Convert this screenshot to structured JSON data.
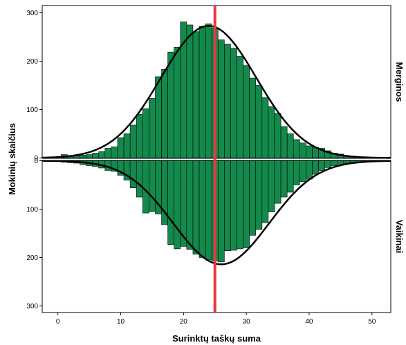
{
  "chart_data": {
    "type": "bar",
    "subtype": "back-to-back histogram with normal curves",
    "xlabel": "Surinktų taškų suma",
    "ylabel": "Mokinių skaičius",
    "xlim": [
      -2.5,
      53
    ],
    "xticks": [
      0,
      10,
      20,
      30,
      40,
      50
    ],
    "ylim": [
      0,
      300
    ],
    "yticks": [
      0,
      100,
      200,
      300
    ],
    "grid": false,
    "bar_color": "#138a4c",
    "bar_edge_color": "#000000",
    "curve_color": "#000000",
    "reference_line": {
      "x": 25,
      "color": "#e8383d"
    },
    "bin_width": 1,
    "panels": [
      {
        "label": "Merginos",
        "position": "top",
        "x": [
          1,
          2,
          3,
          4,
          5,
          6,
          7,
          8,
          9,
          10,
          11,
          12,
          13,
          14,
          15,
          16,
          17,
          18,
          19,
          20,
          21,
          22,
          23,
          24,
          25,
          26,
          27,
          28,
          29,
          30,
          31,
          32,
          33,
          34,
          35,
          36,
          37,
          38,
          39,
          40,
          41,
          42,
          43,
          44,
          45,
          46,
          47
        ],
        "values": [
          7,
          5,
          4,
          6,
          7,
          10,
          13,
          20,
          23,
          42,
          50,
          68,
          90,
          102,
          123,
          168,
          183,
          219,
          229,
          281,
          275,
          261,
          272,
          277,
          268,
          244,
          235,
          227,
          210,
          191,
          165,
          150,
          125,
          106,
          92,
          65,
          50,
          38,
          31,
          25,
          22,
          20,
          15,
          10,
          8,
          5,
          3
        ],
        "normal_curve": {
          "mean": 24,
          "sd": 7.6,
          "peak": 273
        }
      },
      {
        "label": "Vaikinai",
        "position": "bottom",
        "x": [
          1,
          2,
          3,
          4,
          5,
          6,
          7,
          8,
          9,
          10,
          11,
          12,
          13,
          14,
          15,
          16,
          17,
          18,
          19,
          20,
          21,
          22,
          23,
          24,
          25,
          26,
          27,
          28,
          29,
          30,
          31,
          32,
          33,
          34,
          35,
          36,
          37,
          38,
          39,
          40,
          41,
          42,
          43,
          44,
          45,
          46,
          47,
          48,
          49,
          50
        ],
        "values": [
          3,
          4,
          5,
          8,
          10,
          12,
          15,
          20,
          22,
          30,
          40,
          56,
          75,
          108,
          105,
          110,
          132,
          173,
          182,
          177,
          183,
          193,
          200,
          205,
          207,
          209,
          186,
          185,
          182,
          180,
          154,
          142,
          128,
          106,
          88,
          75,
          65,
          50,
          43,
          38,
          28,
          20,
          14,
          10,
          7,
          5,
          4,
          3,
          2,
          1
        ],
        "normal_curve": {
          "mean": 26,
          "sd": 7.6,
          "peak": 214
        }
      }
    ]
  }
}
